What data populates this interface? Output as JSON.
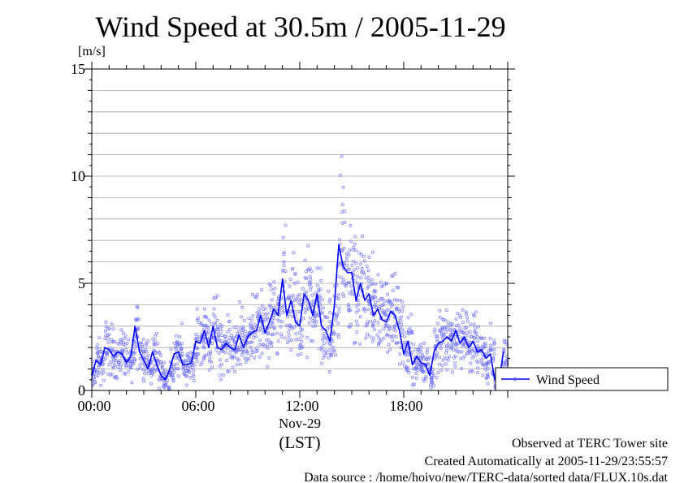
{
  "chart_data": {
    "type": "scatter",
    "title": "Wind Speed at 30.5m / 2005-11-29",
    "ylabel": "[m/s]",
    "xlabel": "(LST)",
    "ylim": [
      0,
      15
    ],
    "xlim": [
      0,
      24
    ],
    "y_ticks": [
      "0",
      "5",
      "10",
      "15"
    ],
    "x_ticks": [
      "00:00",
      "06:00",
      "12:00",
      "18:00"
    ],
    "x_date_label": "Nov-29",
    "grid": "horizontal",
    "legend_position": "right",
    "series": [
      {
        "name": "Wind Speed",
        "color": "#0000ff",
        "point_color": "#7070ff",
        "x": [
          0.0,
          0.25,
          0.5,
          0.75,
          1.0,
          1.25,
          1.5,
          1.75,
          2.0,
          2.25,
          2.5,
          2.75,
          3.0,
          3.25,
          3.5,
          3.75,
          4.0,
          4.25,
          4.5,
          4.75,
          5.0,
          5.25,
          5.5,
          5.75,
          6.0,
          6.25,
          6.5,
          6.75,
          7.0,
          7.25,
          7.5,
          7.75,
          8.0,
          8.25,
          8.5,
          8.75,
          9.0,
          9.25,
          9.5,
          9.75,
          10.0,
          10.25,
          10.5,
          10.75,
          11.0,
          11.25,
          11.5,
          11.75,
          12.0,
          12.25,
          12.5,
          12.75,
          13.0,
          13.25,
          13.5,
          13.75,
          14.0,
          14.25,
          14.5,
          14.75,
          15.0,
          15.25,
          15.5,
          15.75,
          16.0,
          16.25,
          16.5,
          16.75,
          17.0,
          17.25,
          17.5,
          17.75,
          18.0,
          18.25,
          18.5,
          18.75,
          19.0,
          19.25,
          19.5,
          19.75,
          20.0,
          20.25,
          20.5,
          20.75,
          21.0,
          21.25,
          21.5,
          21.75,
          22.0,
          22.25,
          22.5,
          22.75,
          23.0,
          23.25,
          23.5,
          23.75
        ],
        "values": [
          0.7,
          1.4,
          1.2,
          2.0,
          1.9,
          1.6,
          1.8,
          1.7,
          1.3,
          1.6,
          3.0,
          1.8,
          1.4,
          1.0,
          1.8,
          1.2,
          0.7,
          0.5,
          1.0,
          1.7,
          1.8,
          1.2,
          1.2,
          1.3,
          2.3,
          2.2,
          2.8,
          2.0,
          3.0,
          2.0,
          1.9,
          2.2,
          2.0,
          1.9,
          2.6,
          2.0,
          2.5,
          2.7,
          2.8,
          3.5,
          2.7,
          3.2,
          3.8,
          3.5,
          5.2,
          3.5,
          4.2,
          3.2,
          3.0,
          4.5,
          4.2,
          3.5,
          4.5,
          3.0,
          2.8,
          2.3,
          4.0,
          6.8,
          5.8,
          5.5,
          5.5,
          4.2,
          5.0,
          4.2,
          4.5,
          3.5,
          3.8,
          3.3,
          3.2,
          3.7,
          3.5,
          2.8,
          1.7,
          2.3,
          1.2,
          1.6,
          1.3,
          1.2,
          0.7,
          1.8,
          2.2,
          2.3,
          2.5,
          2.3,
          2.8,
          2.2,
          2.5,
          2.0,
          2.3,
          1.8,
          1.9,
          1.5,
          1.7,
          0.5,
          0.4,
          1.8
        ]
      }
    ]
  },
  "footer": {
    "line1": "Observed at TERC Tower site",
    "line2": "Created Automatically at 2005-11-29/23:55:57",
    "line3": "Data source : /home/hoivo/new/TERC-data/sorted  data/FLUX.10s.dat"
  }
}
